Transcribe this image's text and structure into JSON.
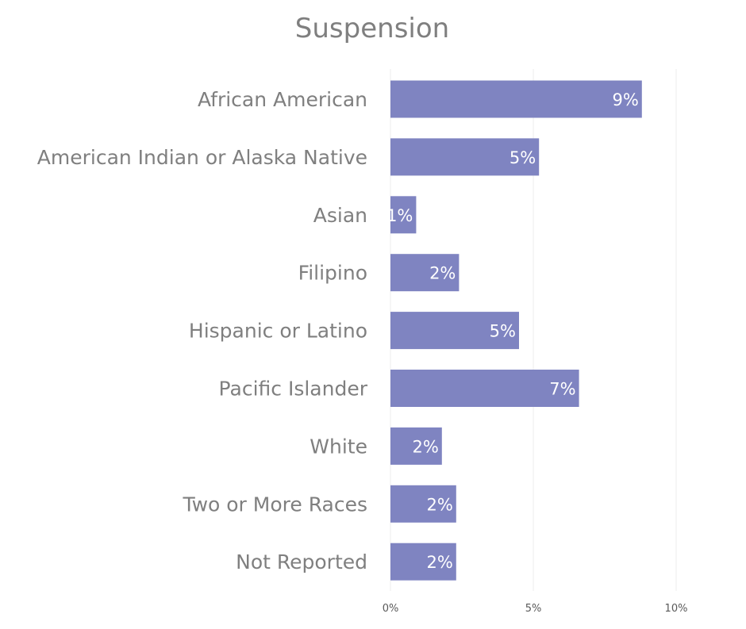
{
  "chart_data": {
    "type": "bar",
    "orientation": "horizontal",
    "title": "Suspension",
    "categories": [
      "African American",
      "American Indian or Alaska Native",
      "Asian",
      "Filipino",
      "Hispanic or Latino",
      "Pacific Islander",
      "White",
      "Two or More Races",
      "Not Reported"
    ],
    "values": [
      8.8,
      5.2,
      0.9,
      2.4,
      4.5,
      6.6,
      1.8,
      2.3,
      2.3
    ],
    "data_labels": [
      "9%",
      "5%",
      "1%",
      "2%",
      "5%",
      "7%",
      "2%",
      "2%",
      "2%"
    ],
    "xlim": [
      0,
      10
    ],
    "x_ticks": [
      0,
      5,
      10
    ],
    "x_tick_labels": [
      "0%",
      "5%",
      "10%"
    ],
    "xlabel": "",
    "ylabel": "",
    "grid": "vertical",
    "legend": "none",
    "colors": {
      "bar": "#7f84c1",
      "label_text": "#7f7f7f",
      "data_label_text": "#ffffff",
      "grid": "#ececec",
      "tick_text": "#595959"
    }
  }
}
